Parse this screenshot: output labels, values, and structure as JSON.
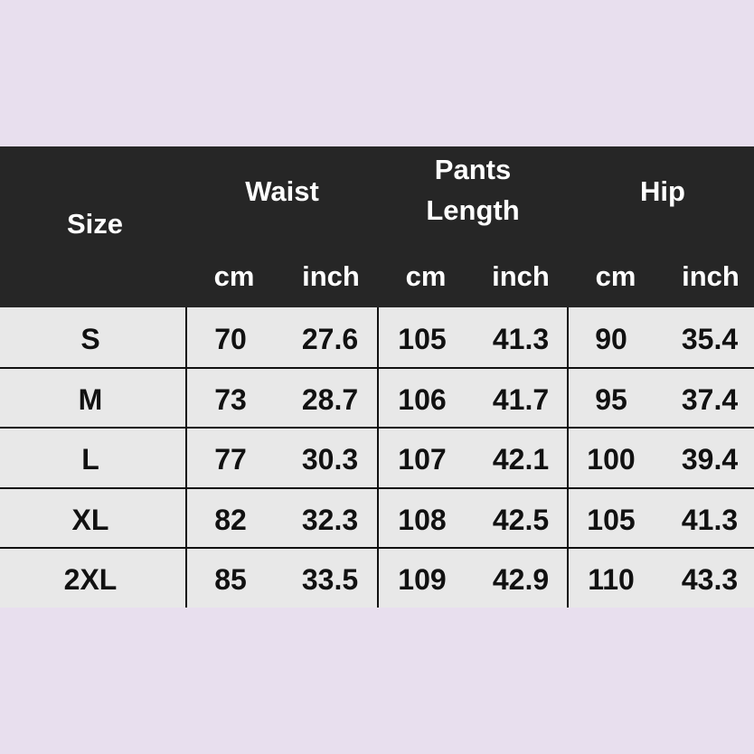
{
  "header": {
    "size": "Size",
    "groups": [
      {
        "label": "Waist"
      },
      {
        "label_line1": "Pants",
        "label_line2": "Length"
      },
      {
        "label": "Hip"
      }
    ],
    "units": [
      "cm",
      "inch",
      "cm",
      "inch",
      "cm",
      "inch"
    ]
  },
  "rows": [
    {
      "size": "S",
      "values": [
        "70",
        "27.6",
        "105",
        "41.3",
        "90",
        "35.4"
      ]
    },
    {
      "size": "M",
      "values": [
        "73",
        "28.7",
        "106",
        "41.7",
        "95",
        "37.4"
      ]
    },
    {
      "size": "L",
      "values": [
        "77",
        "30.3",
        "107",
        "42.1",
        "100",
        "39.4"
      ]
    },
    {
      "size": "XL",
      "values": [
        "82",
        "32.3",
        "108",
        "42.5",
        "105",
        "41.3"
      ]
    },
    {
      "size": "2XL",
      "values": [
        "85",
        "33.5",
        "109",
        "42.9",
        "110",
        "43.3"
      ]
    }
  ],
  "colors": {
    "background": "#e8dfee",
    "header": "#262626",
    "rows": "#e8e8e8"
  }
}
